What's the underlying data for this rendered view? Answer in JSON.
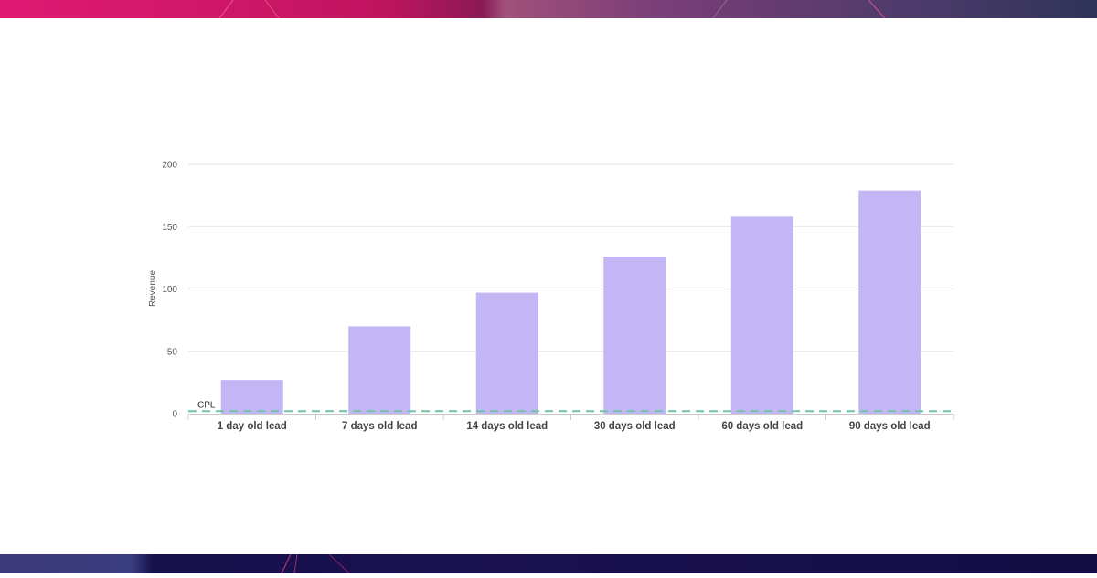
{
  "chart_data": {
    "type": "bar",
    "categories": [
      "1 day old lead",
      "7 days old lead",
      "14 days old lead",
      "30 days old lead",
      "60 days old lead",
      "90 days old lead"
    ],
    "values": [
      27,
      70,
      97,
      126,
      158,
      179
    ],
    "ylabel": "Revenue",
    "ylim": [
      0,
      200
    ],
    "yticks": [
      0,
      50,
      100,
      150,
      200
    ],
    "grid": true,
    "reference_line": {
      "label": "CPL",
      "value": 2
    },
    "colors": {
      "bar": "#c4b6f4",
      "reference_line": "#6cc6a8",
      "grid": "#e6e6e6",
      "tick_text": "#555555"
    }
  }
}
